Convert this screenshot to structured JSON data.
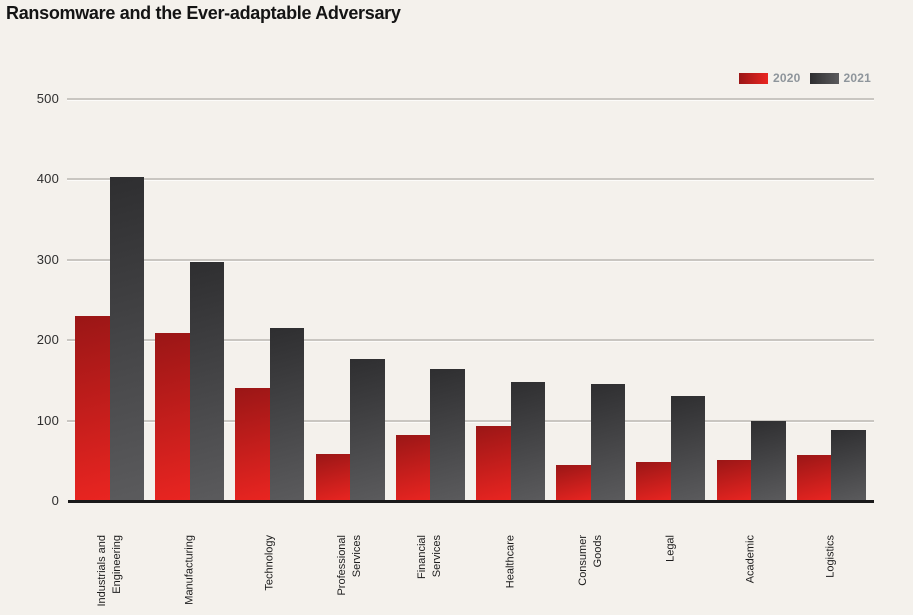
{
  "page": {
    "title": "Ransomware and the Ever-adaptable Adversary"
  },
  "chart_data": {
    "type": "bar",
    "title": "Ransomware and the Ever-adaptable Adversary",
    "categories": [
      "Industrials and Engineering",
      "Manufacturing",
      "Technology",
      "Professional Services",
      "Financial Services",
      "Healthcare",
      "Consumer Goods",
      "Legal",
      "Academic",
      "Logistics"
    ],
    "series": [
      {
        "name": "2020",
        "values": [
          230,
          209,
          140,
          59,
          82,
          93,
          45,
          49,
          51,
          57
        ],
        "color_top": "#9a1616",
        "color_bottom": "#ea2521"
      },
      {
        "name": "2021",
        "values": [
          403,
          297,
          215,
          177,
          164,
          148,
          146,
          131,
          100,
          88
        ],
        "color_top": "#2e2e30",
        "color_bottom": "#5b5b5d"
      }
    ],
    "xlabel": "",
    "ylabel": "",
    "ylim": [
      0,
      500
    ],
    "yticks": [
      0,
      100,
      200,
      300,
      400,
      500
    ],
    "grid": true,
    "legend_position": "top-right"
  },
  "colors": {
    "background": "#f4f1ec",
    "gridline": "#c9c6c1",
    "axis": "#1a1a1a",
    "tick_label": "#2e2e2e",
    "legend_text": "#8e959b",
    "title_text": "#141414"
  }
}
